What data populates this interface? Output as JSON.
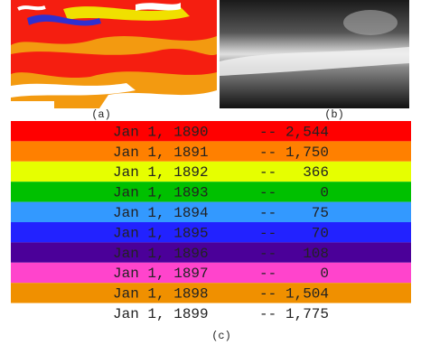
{
  "panels": {
    "a": "(a)",
    "b": "(b)",
    "c": "(c)"
  },
  "rows": [
    {
      "date": "Jan 1, 1890",
      "sep": "--",
      "count": "2,544",
      "color": "#ff0000"
    },
    {
      "date": "Jan 1, 1891",
      "sep": "--",
      "count": "1,750",
      "color": "#ff8000"
    },
    {
      "date": "Jan 1, 1892",
      "sep": "--",
      "count": "366",
      "color": "#e6ff00"
    },
    {
      "date": "Jan 1, 1893",
      "sep": "--",
      "count": "0",
      "color": "#00c000"
    },
    {
      "date": "Jan 1, 1894",
      "sep": "--",
      "count": "75",
      "color": "#3399ff"
    },
    {
      "date": "Jan 1, 1895",
      "sep": "--",
      "count": "70",
      "color": "#2222ff"
    },
    {
      "date": "Jan 1, 1896",
      "sep": "--",
      "count": "108",
      "color": "#4b0099"
    },
    {
      "date": "Jan 1, 1897",
      "sep": "--",
      "count": "0",
      "color": "#ff44cc"
    },
    {
      "date": "Jan 1, 1898",
      "sep": "--",
      "count": "1,504",
      "color": "#f09000"
    },
    {
      "date": "Jan 1, 1899",
      "sep": "--",
      "count": "1,775",
      "color": "#ffffff"
    }
  ]
}
